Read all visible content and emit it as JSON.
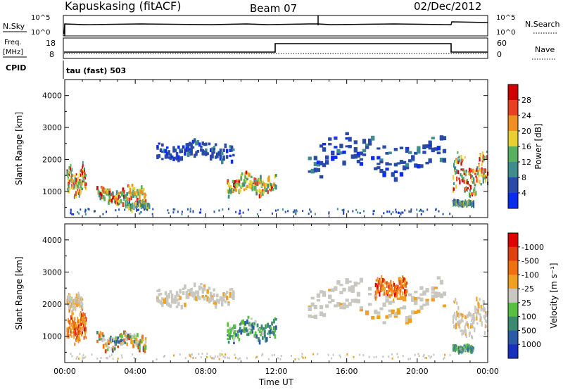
{
  "header": {
    "station": "Kapuskasing (fitACF)",
    "beam": "Beam 07",
    "date": "02/Dec/2012"
  },
  "strips": {
    "nsky_label": "N.Sky",
    "nsky_ticks": [
      "10^5",
      "10^0"
    ],
    "nsearch_label": "N.Search",
    "nsearch_ticks": [
      "10^5",
      "10^0"
    ],
    "freq_label": "Freq.",
    "freq_unit": "[MHz]",
    "freq_ticks": [
      "18",
      "8"
    ],
    "nave_label": "Nave",
    "nave_ticks": [
      "60",
      "0"
    ],
    "cpid_label": "CPID",
    "cpid_value": "tau (fast) 503"
  },
  "chart_data": [
    {
      "type": "heatmap",
      "panel": "power",
      "ylabel": "Slant Range [km]",
      "yticks": [
        1000,
        2000,
        3000,
        4000
      ],
      "ylim": [
        180,
        4500
      ],
      "xlim": [
        0,
        24
      ],
      "colorbar_label": "Power [dB]",
      "colorbar_ticks": [
        "4",
        "8",
        "12",
        "16",
        "20",
        "24",
        "28"
      ],
      "colorbar_colors": [
        "#0a2cf0",
        "#2a4aa8",
        "#3f8c8c",
        "#58b060",
        "#e8d030",
        "#f09020",
        "#e84020",
        "#d00000"
      ],
      "echo_regions": [
        {
          "t0": 0.1,
          "t1": 1.2,
          "r0": 700,
          "r1": 1800,
          "level": "strong"
        },
        {
          "t0": 1.8,
          "t1": 4.6,
          "r0": 500,
          "r1": 1200,
          "level": "strong"
        },
        {
          "t0": 3.4,
          "t1": 4.8,
          "r0": 400,
          "r1": 700,
          "level": "medium"
        },
        {
          "t0": 5.2,
          "t1": 9.6,
          "r0": 1900,
          "r1": 2600,
          "level": "weak"
        },
        {
          "t0": 9.2,
          "t1": 12.0,
          "r0": 800,
          "r1": 1600,
          "level": "strong"
        },
        {
          "t0": 13.8,
          "t1": 21.6,
          "r0": 1400,
          "r1": 2800,
          "level": "weak"
        },
        {
          "t0": 22.0,
          "t1": 24.0,
          "r0": 800,
          "r1": 2200,
          "level": "strong"
        },
        {
          "t0": 22.0,
          "t1": 23.2,
          "r0": 500,
          "r1": 700,
          "level": "medium"
        }
      ]
    },
    {
      "type": "heatmap",
      "panel": "velocity",
      "ylabel": "Slant Range [km]",
      "yticks": [
        1000,
        2000,
        3000,
        4000
      ],
      "ylim": [
        180,
        4500
      ],
      "xlim": [
        0,
        24
      ],
      "xticks": [
        "00:00",
        "04:00",
        "08:00",
        "12:00",
        "16:00",
        "20:00",
        "00:00"
      ],
      "xlabel": "Time UT",
      "colorbar_label": "Velocity [m s⁻¹]",
      "colorbar_ticks": [
        "1000",
        "500",
        "100",
        "25",
        "-25",
        "-100",
        "-500",
        "-1000"
      ],
      "colorbar_colors": [
        "#1830c0",
        "#2a5aa8",
        "#3a8a70",
        "#58c040",
        "#c8c8c0",
        "#f0a020",
        "#f07010",
        "#e04010",
        "#e00000"
      ],
      "echo_regions": [
        {
          "t0": 0.1,
          "t1": 1.2,
          "r0": 700,
          "r1": 1800,
          "level": "neg"
        },
        {
          "t0": 0.1,
          "t1": 1.0,
          "r0": 1800,
          "r1": 2300,
          "level": "zero"
        },
        {
          "t0": 1.8,
          "t1": 4.6,
          "r0": 500,
          "r1": 1200,
          "level": "mixed"
        },
        {
          "t0": 5.2,
          "t1": 9.6,
          "r0": 1900,
          "r1": 2600,
          "level": "zero"
        },
        {
          "t0": 9.2,
          "t1": 12.0,
          "r0": 800,
          "r1": 1600,
          "level": "pos"
        },
        {
          "t0": 13.8,
          "t1": 21.6,
          "r0": 1400,
          "r1": 2800,
          "level": "zero"
        },
        {
          "t0": 17.6,
          "t1": 19.4,
          "r0": 2100,
          "r1": 2900,
          "level": "neg"
        },
        {
          "t0": 22.0,
          "t1": 24.0,
          "r0": 800,
          "r1": 2200,
          "level": "zero"
        },
        {
          "t0": 22.0,
          "t1": 23.2,
          "r0": 500,
          "r1": 700,
          "level": "pos"
        }
      ]
    }
  ]
}
